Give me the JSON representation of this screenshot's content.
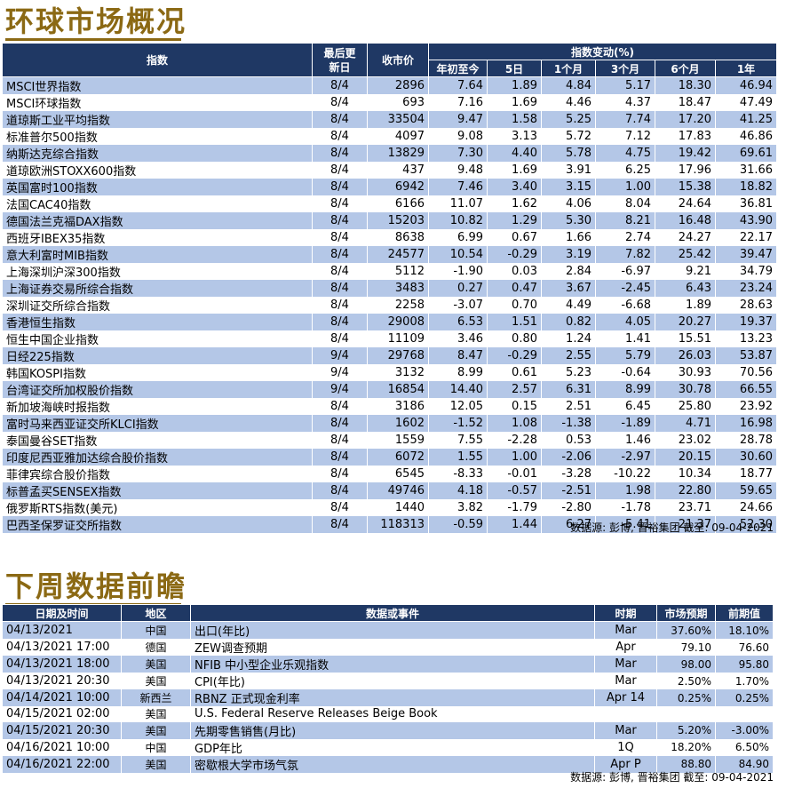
{
  "market": {
    "title": "环球市场概况",
    "headers": {
      "index": "指数",
      "updated": "最后更新日",
      "close": "收市价",
      "change_group": "指数变动(%)",
      "ytd": "年初至今",
      "d5": "5日",
      "m1": "1个月",
      "m3": "3个月",
      "m6": "6个月",
      "y1": "1年"
    },
    "rows": [
      {
        "name": "MSCI世界指数",
        "date": "8/4",
        "close": "2896",
        "ytd": "7.64",
        "d5": "1.89",
        "m1": "4.84",
        "m3": "5.17",
        "m6": "18.30",
        "y1": "46.94"
      },
      {
        "name": "MSCI环球指数",
        "date": "8/4",
        "close": "693",
        "ytd": "7.16",
        "d5": "1.69",
        "m1": "4.46",
        "m3": "4.37",
        "m6": "18.47",
        "y1": "47.49"
      },
      {
        "name": "道琼斯工业平均指数",
        "date": "8/4",
        "close": "33504",
        "ytd": "9.47",
        "d5": "1.58",
        "m1": "5.25",
        "m3": "7.74",
        "m6": "17.20",
        "y1": "41.25"
      },
      {
        "name": "标准普尔500指数",
        "date": "8/4",
        "close": "4097",
        "ytd": "9.08",
        "d5": "3.13",
        "m1": "5.72",
        "m3": "7.12",
        "m6": "17.83",
        "y1": "46.86"
      },
      {
        "name": "纳斯达克综合指数",
        "date": "8/4",
        "close": "13829",
        "ytd": "7.30",
        "d5": "4.40",
        "m1": "5.78",
        "m3": "4.75",
        "m6": "19.42",
        "y1": "69.61"
      },
      {
        "name": "道琼欧洲STOXX600指数",
        "date": "8/4",
        "close": "437",
        "ytd": "9.48",
        "d5": "1.69",
        "m1": "3.91",
        "m3": "6.25",
        "m6": "17.96",
        "y1": "31.66"
      },
      {
        "name": "英国富时100指数",
        "date": "8/4",
        "close": "6942",
        "ytd": "7.46",
        "d5": "3.40",
        "m1": "3.15",
        "m3": "1.00",
        "m6": "15.38",
        "y1": "18.82"
      },
      {
        "name": "法国CAC40指数",
        "date": "8/4",
        "close": "6166",
        "ytd": "11.07",
        "d5": "1.62",
        "m1": "4.06",
        "m3": "8.04",
        "m6": "24.64",
        "y1": "36.81"
      },
      {
        "name": "德国法兰克福DAX指数",
        "date": "8/4",
        "close": "15203",
        "ytd": "10.82",
        "d5": "1.29",
        "m1": "5.30",
        "m3": "8.21",
        "m6": "16.48",
        "y1": "43.90"
      },
      {
        "name": "西班牙IBEX35指数",
        "date": "8/4",
        "close": "8638",
        "ytd": "6.99",
        "d5": "0.67",
        "m1": "1.66",
        "m3": "2.74",
        "m6": "24.27",
        "y1": "22.17"
      },
      {
        "name": "意大利富时MIB指数",
        "date": "8/4",
        "close": "24577",
        "ytd": "10.54",
        "d5": "-0.29",
        "m1": "3.19",
        "m3": "7.82",
        "m6": "25.42",
        "y1": "39.47"
      },
      {
        "name": "上海深圳沪深300指数",
        "date": "8/4",
        "close": "5112",
        "ytd": "-1.90",
        "d5": "0.03",
        "m1": "2.84",
        "m3": "-6.97",
        "m6": "9.21",
        "y1": "34.79"
      },
      {
        "name": "上海证券交易所综合指数",
        "date": "8/4",
        "close": "3483",
        "ytd": "0.27",
        "d5": "0.47",
        "m1": "3.67",
        "m3": "-2.45",
        "m6": "6.43",
        "y1": "23.24"
      },
      {
        "name": "深圳证交所综合指数",
        "date": "8/4",
        "close": "2258",
        "ytd": "-3.07",
        "d5": "0.70",
        "m1": "4.49",
        "m3": "-6.68",
        "m6": "1.89",
        "y1": "28.63"
      },
      {
        "name": "香港恒生指数",
        "date": "8/4",
        "close": "29008",
        "ytd": "6.53",
        "d5": "1.51",
        "m1": "0.82",
        "m3": "4.05",
        "m6": "20.27",
        "y1": "19.37"
      },
      {
        "name": "恒生中国企业指数",
        "date": "8/4",
        "close": "11109",
        "ytd": "3.46",
        "d5": "0.80",
        "m1": "1.24",
        "m3": "1.41",
        "m6": "15.51",
        "y1": "13.23"
      },
      {
        "name": "日经225指数",
        "date": "9/4",
        "close": "29768",
        "ytd": "8.47",
        "d5": "-0.29",
        "m1": "2.55",
        "m3": "5.79",
        "m6": "26.03",
        "y1": "53.87"
      },
      {
        "name": "韩国KOSPI指数",
        "date": "9/4",
        "close": "3132",
        "ytd": "8.99",
        "d5": "0.61",
        "m1": "5.23",
        "m3": "-0.64",
        "m6": "30.93",
        "y1": "70.56"
      },
      {
        "name": "台湾证交所加权股价指数",
        "date": "9/4",
        "close": "16854",
        "ytd": "14.40",
        "d5": "2.57",
        "m1": "6.31",
        "m3": "8.99",
        "m6": "30.78",
        "y1": "66.55"
      },
      {
        "name": "新加坡海峡时报指数",
        "date": "8/4",
        "close": "3186",
        "ytd": "12.05",
        "d5": "0.15",
        "m1": "2.51",
        "m3": "6.45",
        "m6": "25.80",
        "y1": "23.92"
      },
      {
        "name": "富时马来西亚证交所KLCI指数",
        "date": "8/4",
        "close": "1602",
        "ytd": "-1.52",
        "d5": "1.08",
        "m1": "-1.38",
        "m3": "-1.89",
        "m6": "4.71",
        "y1": "16.98"
      },
      {
        "name": "泰国曼谷SET指数",
        "date": "8/4",
        "close": "1559",
        "ytd": "7.55",
        "d5": "-2.28",
        "m1": "0.53",
        "m3": "1.46",
        "m6": "23.02",
        "y1": "28.78"
      },
      {
        "name": "印度尼西亚雅加达综合股价指数",
        "date": "8/4",
        "close": "6072",
        "ytd": "1.55",
        "d5": "1.00",
        "m1": "-2.06",
        "m3": "-2.97",
        "m6": "20.15",
        "y1": "30.60"
      },
      {
        "name": "菲律宾综合股价指数",
        "date": "8/4",
        "close": "6545",
        "ytd": "-8.33",
        "d5": "-0.01",
        "m1": "-3.28",
        "m3": "-10.22",
        "m6": "10.34",
        "y1": "18.77"
      },
      {
        "name": "标普孟买SENSEX指数",
        "date": "8/4",
        "close": "49746",
        "ytd": "4.18",
        "d5": "-0.57",
        "m1": "-2.51",
        "m3": "1.98",
        "m6": "22.80",
        "y1": "59.65"
      },
      {
        "name": "俄罗斯RTS指数(美元)",
        "date": "8/4",
        "close": "1440",
        "ytd": "3.82",
        "d5": "-1.79",
        "m1": "-2.80",
        "m3": "-1.78",
        "m6": "23.71",
        "y1": "24.66"
      },
      {
        "name": "巴西圣保罗证交所指数",
        "date": "8/4",
        "close": "118313",
        "ytd": "-0.59",
        "d5": "1.44",
        "m1": "6.27",
        "m3": "-5.41",
        "m6": "21.37",
        "y1": "52.30"
      }
    ],
    "source": "数据源: 彭博, 晋裕集团 截至: 09-04-2021"
  },
  "calendar": {
    "title": "下周数据前瞻",
    "headers": {
      "datetime": "日期及时间",
      "region": "地区",
      "event": "数据或事件",
      "period": "时期",
      "forecast": "市场预期",
      "previous": "前期值"
    },
    "rows": [
      {
        "datetime": "04/13/2021",
        "region": "中国",
        "event": "出口(年比)",
        "period": "Mar",
        "forecast": "37.60%",
        "previous": "18.10%"
      },
      {
        "datetime": "04/13/2021 17:00",
        "region": "德国",
        "event": "ZEW调查预期",
        "period": "Apr",
        "forecast": "79.10",
        "previous": "76.60"
      },
      {
        "datetime": "04/13/2021 18:00",
        "region": "美国",
        "event": "NFIB 中小型企业乐观指数",
        "period": "Mar",
        "forecast": "98.00",
        "previous": "95.80"
      },
      {
        "datetime": "04/13/2021 20:30",
        "region": "美国",
        "event": "CPI(年比)",
        "period": "Mar",
        "forecast": "2.50%",
        "previous": "1.70%"
      },
      {
        "datetime": "04/14/2021 10:00",
        "region": "新西兰",
        "event": "RBNZ 正式现金利率",
        "period": "Apr 14",
        "forecast": "0.25%",
        "previous": "0.25%"
      },
      {
        "datetime": "04/15/2021 02:00",
        "region": "美国",
        "event": "U.S. Federal Reserve Releases Beige Book",
        "period": "",
        "forecast": "",
        "previous": ""
      },
      {
        "datetime": "04/15/2021 20:30",
        "region": "美国",
        "event": "先期零售销售(月比)",
        "period": "Mar",
        "forecast": "5.20%",
        "previous": "-3.00%"
      },
      {
        "datetime": "04/16/2021 10:00",
        "region": "中国",
        "event": "GDP年比",
        "period": "1Q",
        "forecast": "18.20%",
        "previous": "6.50%"
      },
      {
        "datetime": "04/16/2021 22:00",
        "region": "美国",
        "event": "密歇根大学市场气氛",
        "period": "Apr P",
        "forecast": "88.80",
        "previous": "84.90"
      }
    ],
    "source": "数据源: 彭博, 晋裕集团 截至: 09-04-2021"
  }
}
